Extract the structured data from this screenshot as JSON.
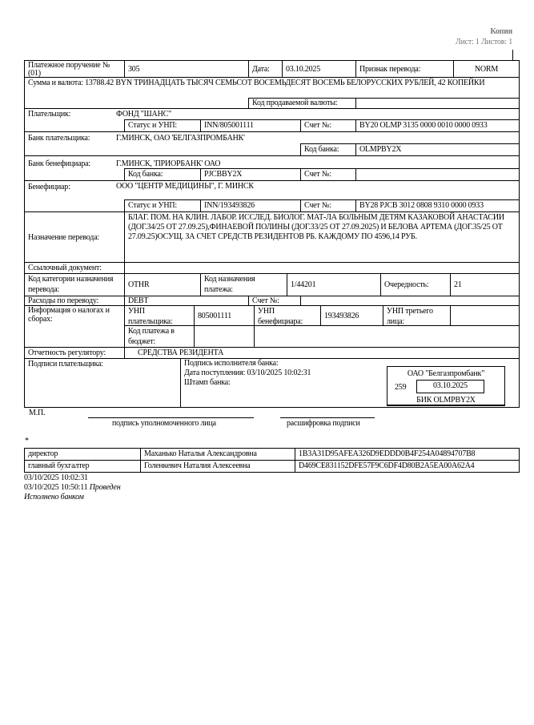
{
  "header": {
    "copy_label": "Копия",
    "sheets": "Лист: 1 Листов: 1"
  },
  "order": {
    "title": "Платежное поручение № (01)",
    "number": "305",
    "date_label": "Дата:",
    "date": "03.10.2025",
    "transfer_flag_label": "Признак перевода:",
    "transfer_flag": "NORM",
    "amount_text": "Сумма и валюта: 13788.42 BYN ТРИНАДЦАТЬ ТЫСЯЧ СЕМЬСОТ ВОСЕМЬДЕСЯТ ВОСЕМЬ БЕЛОРУССКИХ РУБЛЕЙ, 42 КОПЕЙКИ",
    "sold_currency_label": "Код продаваемой валюты:",
    "sold_currency": "",
    "payer_label": "Плательщик:",
    "payer": "ФОНД \"ШАНС\"",
    "status_unp_label": "Статус и УНП:",
    "payer_unp": "INN/805001111",
    "account_label": "Счет №:",
    "payer_account": "BY20 OLMP 3135 0000 0010 0000 0933",
    "payer_bank_label": "Банк плательщика:",
    "payer_bank": "Г.МИНСК, ОАО 'БЕЛГАЗПРОМБАНК'",
    "bank_code_label": "Код банка:",
    "payer_bank_code": "OLMPBY2X",
    "ben_bank_label": "Банк бенефициара:",
    "ben_bank": "Г.МИНСК, 'ПРИОРБАНК' ОАО",
    "ben_bank_code": "PJCBBY2X",
    "ben_bank_account": "",
    "beneficiary_label": "Бенефициар:",
    "beneficiary": "ООО \"ЦЕНТР МЕДИЦИНЫ\", Г. МИНСК",
    "ben_unp": "INN/193493826",
    "ben_account": "BY28 PJCB 3012 0808 9310 0000 0933",
    "purpose_label": "Назначение перевода:",
    "purpose": "БЛАГ.  ПОМ. НА КЛИН. ЛАБОР. ИССЛЕД. БИОЛОГ. МАТ-ЛА  БОЛЬНЫМ ДЕТЯМ КАЗАКОВОЙ АНАСТАСИИ (ДОГ.34/25 ОТ 27.09.25),ФИНАЕВОЙ ПОЛИНЫ (ДОГ.33/25 ОТ 27.09.2025) И БЕЛОВА АРТЕМА (ДОГ.35/25 ОТ 27.09.25)ОСУЩ. ЗА СЧЕТ СРЕДСТВ  РЕЗИДЕНТОВ РБ. КАЖДОМУ ПО 4596,14 РУБ.",
    "ref_doc_label": "Ссылочный документ:",
    "ref_doc": "",
    "category_label": "Код категории назначения перевода:",
    "category": "OTHR",
    "payment_purpose_code_label": "Код назначения платежа:",
    "payment_purpose_code": "1/44201",
    "priority_label": "Очередность:",
    "priority": "21",
    "expenses_label": "Расходы по переводу:",
    "expenses": "DEBT",
    "expenses_account": "",
    "tax_label": "Информация о налогах и сборах:",
    "payer_unp_label": "УНП плательщика:",
    "payer_unp_value": "805001111",
    "ben_unp_label": "УНП бенефициара:",
    "ben_unp_value": "193493826",
    "third_unp_label": "УНП третьего лица:",
    "third_unp": "",
    "budget_code_label": "Код платежа в бюджет:",
    "budget_code": "",
    "regulator_label": "Отчетность регулятору:",
    "regulator": "СРЕДСТВА РЕЗИДЕНТА",
    "payer_signatures_label": "Подписи плательщика:",
    "bank_signature_label": "Подпись исполнителя банка:",
    "received": "Дата поступления: 03/10/2025 10:02:31",
    "bank_stamp_label": "Штамп банка:"
  },
  "stamp": {
    "bank": "ОАО \"Белгазпромбанк\"",
    "number": "259",
    "date": "03.10.2025",
    "bic": "БИК OLMPBY2X"
  },
  "footer": {
    "mp": "М.П.",
    "sign_caption": "подпись уполномоченного лица",
    "decode_caption": "расшифровка подписи",
    "asterisk": "*"
  },
  "signers": [
    {
      "role": "директор",
      "name": "Маханько Наталья Александровна",
      "hash": "1B3A31D95AFEA326D9EDDD0B4F254A04894707B8"
    },
    {
      "role": "главный бухгалтер",
      "name": "Голенкевич Наталия Алексеевна",
      "hash": "D469CE831152DFE57F9C6DF4D80B2A5EA00A62A4"
    }
  ],
  "log": {
    "line1": "03/10/2025 10:02:31",
    "line2_time": "03/10/2025 10:50:11",
    "line2_status": "Проведен",
    "line3": "Исполнено банком"
  }
}
